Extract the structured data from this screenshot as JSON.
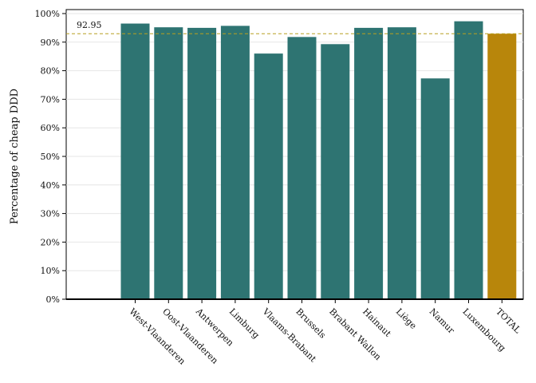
{
  "chart_data": {
    "type": "bar",
    "categories": [
      "West-Vlaanderen",
      "Oost-Vlaanderen",
      "Antwerpen",
      "Limburg",
      "Vlaams-Brabant",
      "Brussels",
      "Brabant Wallon",
      "Hainaut",
      "Liège",
      "Namur",
      "Luxembourg",
      "TOTAL"
    ],
    "values": [
      96.5,
      95.2,
      95.0,
      95.7,
      86.0,
      91.8,
      89.3,
      95.0,
      95.2,
      77.3,
      97.3,
      92.95
    ],
    "ylabel": "Percentage of cheap DDD",
    "ylim": [
      0,
      100
    ],
    "yticks": [
      "0%",
      "10%",
      "20%",
      "30%",
      "40%",
      "50%",
      "60%",
      "70%",
      "80%",
      "90%",
      "100%"
    ],
    "reference_line": {
      "value": 92.95,
      "label": "92.95"
    },
    "colors": {
      "bar": "#2e7472",
      "total": "#b8860b",
      "reference": "#b8a020",
      "grid": "#e6e6e6"
    },
    "grid": true
  }
}
